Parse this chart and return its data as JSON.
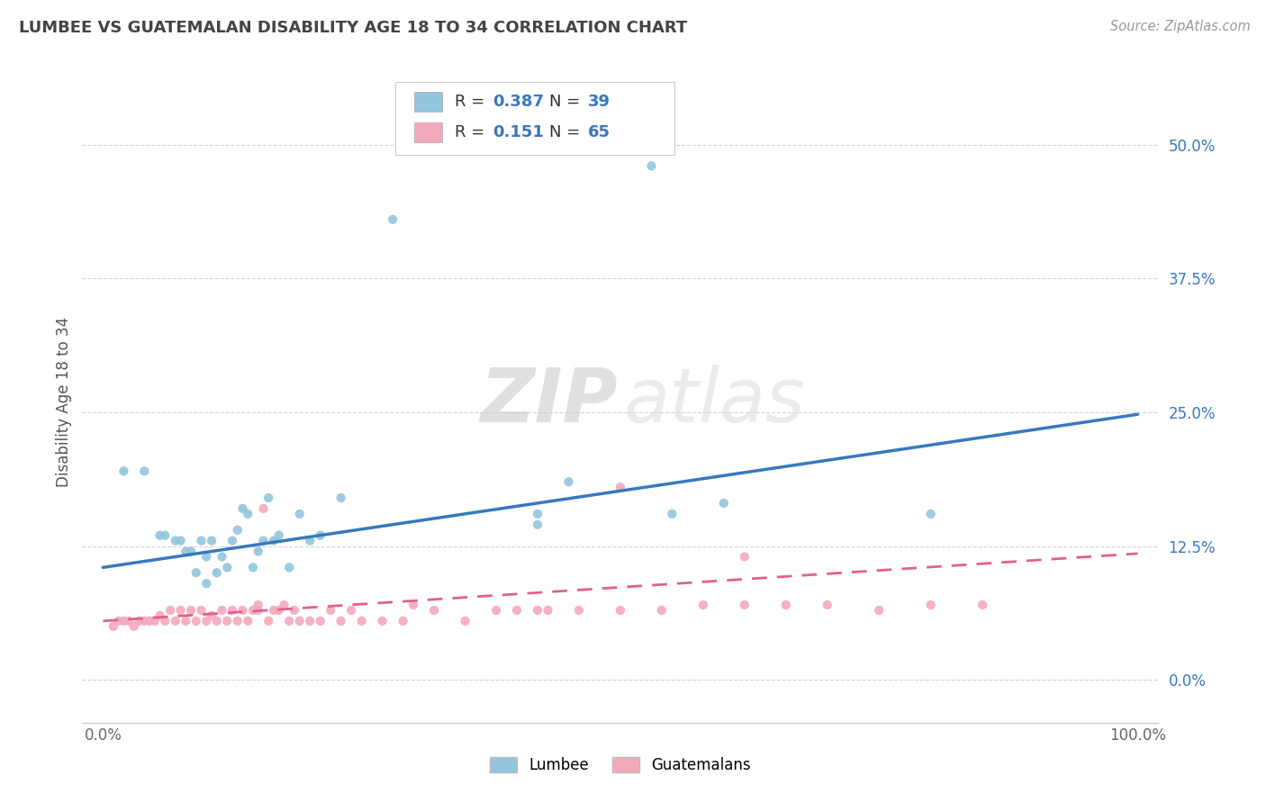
{
  "title": "LUMBEE VS GUATEMALAN DISABILITY AGE 18 TO 34 CORRELATION CHART",
  "source": "Source: ZipAtlas.com",
  "ylabel": "Disability Age 18 to 34",
  "xlim": [
    -0.02,
    1.02
  ],
  "ylim": [
    -0.04,
    0.56
  ],
  "yticks": [
    0.0,
    0.125,
    0.25,
    0.375,
    0.5
  ],
  "ytick_labels": [
    "0.0%",
    "12.5%",
    "25.0%",
    "37.5%",
    "50.0%"
  ],
  "xticks": [
    0.0,
    1.0
  ],
  "xtick_labels": [
    "0.0%",
    "100.0%"
  ],
  "lumbee_R": 0.387,
  "lumbee_N": 39,
  "guatemalan_R": 0.151,
  "guatemalan_N": 65,
  "lumbee_color": "#92c5de",
  "guatemalan_color": "#f4a9bb",
  "lumbee_line_color": "#3878c0",
  "guatemalan_line_color": "#e06090",
  "background_color": "#ffffff",
  "grid_color": "#c8c8c8",
  "title_color": "#444444",
  "lumbee_x": [
    0.02,
    0.04,
    0.055,
    0.06,
    0.07,
    0.075,
    0.08,
    0.085,
    0.09,
    0.095,
    0.1,
    0.1,
    0.105,
    0.11,
    0.115,
    0.12,
    0.125,
    0.13,
    0.135,
    0.14,
    0.145,
    0.15,
    0.155,
    0.16,
    0.165,
    0.17,
    0.18,
    0.19,
    0.2,
    0.21,
    0.23,
    0.28,
    0.42,
    0.45,
    0.55,
    0.6,
    0.8,
    0.53,
    0.42
  ],
  "lumbee_y": [
    0.195,
    0.195,
    0.135,
    0.135,
    0.13,
    0.13,
    0.12,
    0.12,
    0.1,
    0.13,
    0.09,
    0.115,
    0.13,
    0.1,
    0.115,
    0.105,
    0.13,
    0.14,
    0.16,
    0.155,
    0.105,
    0.12,
    0.13,
    0.17,
    0.13,
    0.135,
    0.105,
    0.155,
    0.13,
    0.135,
    0.17,
    0.43,
    0.145,
    0.185,
    0.155,
    0.165,
    0.155,
    0.48,
    0.155
  ],
  "guatemalan_x": [
    0.01,
    0.015,
    0.02,
    0.025,
    0.03,
    0.035,
    0.04,
    0.045,
    0.05,
    0.055,
    0.06,
    0.065,
    0.07,
    0.075,
    0.08,
    0.085,
    0.09,
    0.095,
    0.1,
    0.105,
    0.11,
    0.115,
    0.12,
    0.125,
    0.13,
    0.135,
    0.14,
    0.145,
    0.15,
    0.155,
    0.16,
    0.165,
    0.17,
    0.175,
    0.18,
    0.185,
    0.19,
    0.2,
    0.21,
    0.22,
    0.23,
    0.24,
    0.25,
    0.27,
    0.29,
    0.32,
    0.35,
    0.38,
    0.4,
    0.43,
    0.46,
    0.5,
    0.54,
    0.58,
    0.62,
    0.66,
    0.7,
    0.75,
    0.8,
    0.85,
    0.5,
    0.62,
    0.3,
    0.15,
    0.42
  ],
  "guatemalan_y": [
    0.05,
    0.055,
    0.055,
    0.055,
    0.05,
    0.055,
    0.055,
    0.055,
    0.055,
    0.06,
    0.055,
    0.065,
    0.055,
    0.065,
    0.055,
    0.065,
    0.055,
    0.065,
    0.055,
    0.06,
    0.055,
    0.065,
    0.055,
    0.065,
    0.055,
    0.065,
    0.055,
    0.065,
    0.07,
    0.16,
    0.055,
    0.065,
    0.065,
    0.07,
    0.055,
    0.065,
    0.055,
    0.055,
    0.055,
    0.065,
    0.055,
    0.065,
    0.055,
    0.055,
    0.055,
    0.065,
    0.055,
    0.065,
    0.065,
    0.065,
    0.065,
    0.065,
    0.065,
    0.07,
    0.07,
    0.07,
    0.07,
    0.065,
    0.07,
    0.07,
    0.18,
    0.115,
    0.07,
    0.065,
    0.065
  ],
  "lumbee_line_x0": 0.0,
  "lumbee_line_y0": 0.105,
  "lumbee_line_x1": 1.0,
  "lumbee_line_y1": 0.248,
  "guatemalan_line_x0": 0.0,
  "guatemalan_line_y0": 0.055,
  "guatemalan_line_x1": 1.0,
  "guatemalan_line_y1": 0.118
}
